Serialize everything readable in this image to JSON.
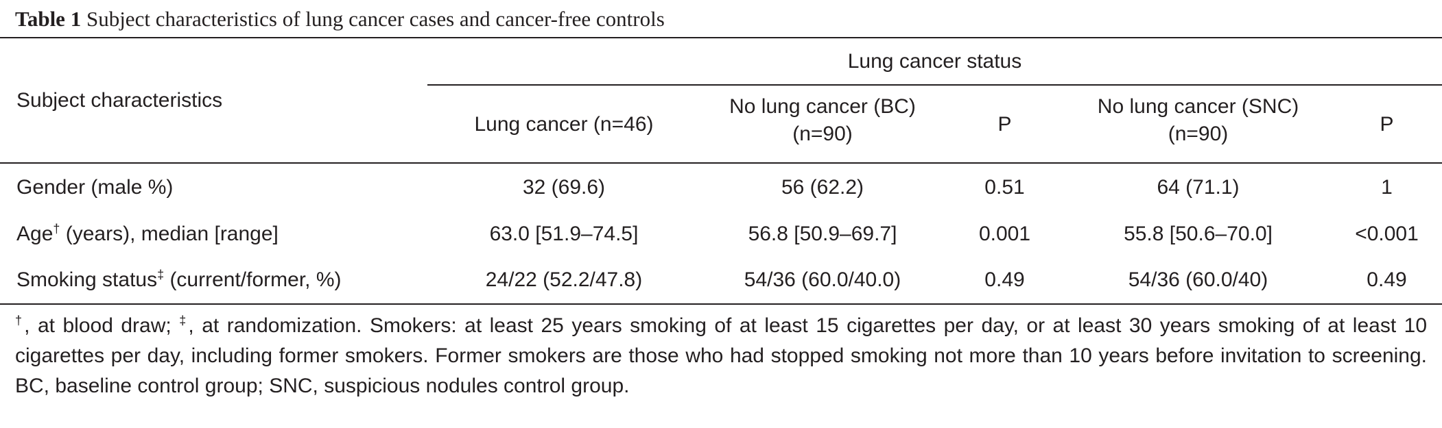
{
  "caption": {
    "label": "Table 1",
    "title": "Subject characteristics of lung cancer cases and cancer-free controls"
  },
  "header": {
    "row_label": "Subject characteristics",
    "group": "Lung cancer status",
    "cols": [
      {
        "line1": "Lung cancer (n=46)",
        "line2": ""
      },
      {
        "line1": "No lung cancer (BC)",
        "line2": "(n=90)"
      },
      {
        "line1": "P",
        "line2": ""
      },
      {
        "line1": "No lung cancer (SNC)",
        "line2": "(n=90)"
      },
      {
        "line1": "P",
        "line2": ""
      }
    ]
  },
  "rows": [
    {
      "label": "Gender (male %)",
      "sup": "",
      "label_rest": "",
      "cells": [
        "32 (69.6)",
        "56 (62.2)",
        "0.51",
        "64 (71.1)",
        "1"
      ]
    },
    {
      "label": "Age",
      "sup": "†",
      "label_rest": " (years), median [range]",
      "cells": [
        "63.0 [51.9–74.5]",
        "56.8 [50.9–69.7]",
        "0.001",
        "55.8 [50.6–70.0]",
        "<0.001"
      ]
    },
    {
      "label": "Smoking status",
      "sup": "‡",
      "label_rest": " (current/former, %)",
      "cells": [
        "24/22 (52.2/47.8)",
        "54/36 (60.0/40.0)",
        "0.49",
        "54/36 (60.0/40)",
        "0.49"
      ]
    }
  ],
  "footnote": {
    "sym1": "†",
    "text1": ", at blood draw; ",
    "sym2": "‡",
    "text2": ", at randomization. Smokers: at least 25 years smoking of at least 15 cigarettes per day, or at least 30 years smoking of at least 10 cigarettes per day, including former smokers. Former smokers are those who had stopped smoking not more than 10 years before invitation to screening. BC, baseline control group; SNC, suspicious nodules control group."
  }
}
